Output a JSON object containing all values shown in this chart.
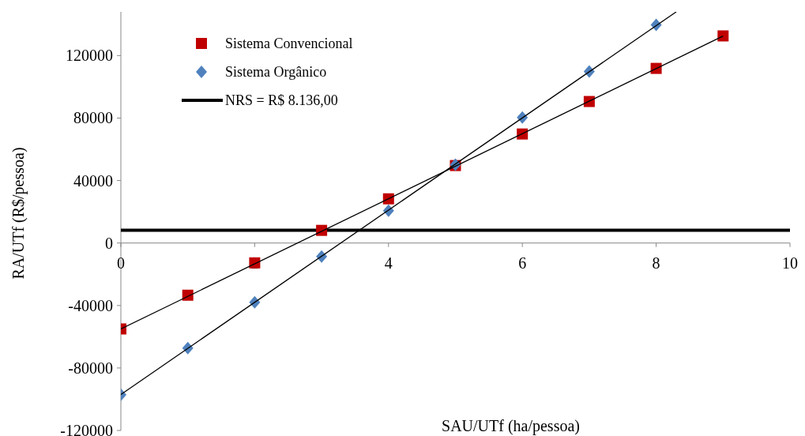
{
  "chart_data": {
    "type": "scatter",
    "xlabel": "SAU/UTf (ha/pessoa)",
    "ylabel": "RA/UTf (R$/pessoa)",
    "xlim": [
      0,
      10
    ],
    "xticks": [
      0,
      2,
      4,
      6,
      8,
      10
    ],
    "ylim": [
      -120000,
      148000
    ],
    "yticks": [
      -120000,
      -80000,
      -40000,
      0,
      40000,
      80000,
      120000
    ],
    "grid": false,
    "legend": "top left",
    "series": [
      {
        "name": "Sistema Convencional",
        "marker": "square",
        "color": "#c00000",
        "x": [
          0,
          1,
          2,
          3,
          4,
          5,
          6,
          7,
          8,
          9
        ],
        "values": [
          -55000,
          -33400,
          -12700,
          8100,
          28300,
          49600,
          69800,
          90600,
          111800,
          132600
        ]
      },
      {
        "name": "Sistema Orgânico",
        "marker": "diamond",
        "color": "#4f81bd",
        "x": [
          0,
          1,
          2,
          3,
          4,
          5,
          6,
          7,
          8
        ],
        "values": [
          -97100,
          -67300,
          -37900,
          -8600,
          20700,
          50100,
          80400,
          109800,
          139700
        ]
      },
      {
        "type": "line",
        "marker": "none",
        "color": "#000000",
        "x": [
          0,
          9
        ],
        "values": [
          -55000,
          132500
        ]
      },
      {
        "type": "line",
        "marker": "none",
        "color": "#000000",
        "x": [
          0,
          8.3
        ],
        "values": [
          -97000,
          148000
        ]
      }
    ],
    "ref_lines": [
      {
        "axis": "y",
        "value": 8136,
        "label": "NRS = R$ 8.136,00",
        "color": "#000000"
      }
    ]
  }
}
